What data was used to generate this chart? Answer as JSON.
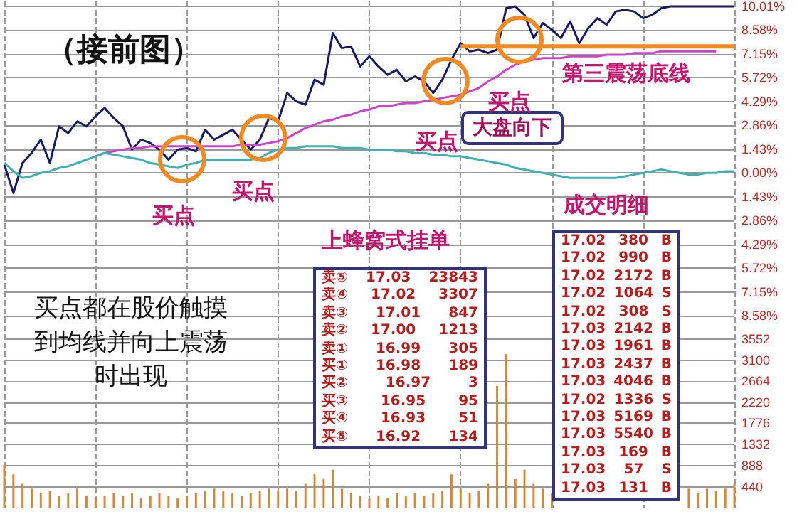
{
  "chart_data": {
    "type": "line",
    "grid": true,
    "marker": "none",
    "categories": [
      null,
      null,
      null,
      null,
      null,
      null,
      null,
      null,
      null,
      null,
      null,
      null,
      null,
      null,
      null,
      null,
      null,
      null,
      null,
      null,
      null,
      null,
      null,
      null,
      null,
      null,
      null,
      null,
      null,
      null,
      null,
      null,
      null,
      null,
      null,
      null,
      null,
      null,
      null,
      null,
      null,
      null,
      null,
      null,
      null,
      null,
      null,
      null,
      null,
      null,
      null,
      null,
      null,
      null,
      null,
      null,
      null,
      null,
      null,
      null,
      null,
      null,
      null,
      null,
      null,
      null,
      null,
      null,
      null,
      null,
      null,
      null,
      null,
      null,
      null,
      null,
      null,
      null,
      null,
      null,
      null
    ],
    "ylim": [
      -20.1,
      10.3
    ],
    "yticks": [
      {
        "value": 10.01,
        "label": "10.01%"
      },
      {
        "value": 8.58,
        "label": "8.58%"
      },
      {
        "value": 7.15,
        "label": "7.15%"
      },
      {
        "value": 5.72,
        "label": "5.72%"
      },
      {
        "value": 4.29,
        "label": "4.29%"
      },
      {
        "value": 2.86,
        "label": "2.86%"
      },
      {
        "value": 1.43,
        "label": "1.43%"
      },
      {
        "value": 0,
        "label": "0.00%"
      },
      {
        "value": -1.43,
        "label": "1.43%"
      },
      {
        "value": -2.86,
        "label": "2.86%"
      },
      {
        "value": -4.29,
        "label": "4.29%"
      },
      {
        "value": -5.72,
        "label": "5.72%"
      },
      {
        "value": -7.15,
        "label": "7.15%"
      },
      {
        "value": -8.58,
        "label": "8.58%"
      }
    ],
    "y2lim": [
      0,
      10650
    ],
    "y2ticks": [
      440,
      888,
      1332,
      1776,
      2220,
      2664,
      3100,
      3552
    ],
    "series": [
      {
        "color": "#1a1a5e",
        "values": [
          0.5,
          -1.2,
          0.6,
          1.2,
          2.0,
          0.6,
          2.8,
          2.4,
          3.1,
          2.8,
          3.4,
          3.9,
          3.3,
          2.8,
          1.4,
          2.0,
          1.8,
          1.4,
          0.8,
          1.4,
          1.5,
          1.3,
          2.6,
          2.0,
          2.3,
          2.6,
          2.0,
          1.4,
          2.0,
          3.3,
          3.1,
          4.8,
          4.3,
          4.1,
          5.6,
          5.3,
          8.4,
          7.5,
          7.6,
          6.4,
          7.0,
          6.4,
          5.9,
          6.2,
          5.5,
          5.8,
          5.5,
          4.8,
          5.6,
          6.8,
          7.8,
          7.3,
          7.4,
          7.2,
          7.4,
          9.9,
          10.0,
          9.5,
          8.1,
          9.0,
          8.6,
          8.1,
          9.1,
          7.8,
          8.7,
          9.3,
          8.9,
          9.7,
          9.8,
          9.7,
          9.3,
          9.5,
          9.9,
          10.0,
          10.0,
          10.0,
          10.0,
          10.0,
          10.0,
          10.0,
          10.0
        ]
      },
      {
        "color": "#cc44cc",
        "values": [
          null,
          null,
          null,
          null,
          null,
          null,
          null,
          null,
          null,
          null,
          1.0,
          1.2,
          1.3,
          1.4,
          1.5,
          1.5,
          1.6,
          1.6,
          1.6,
          1.6,
          1.6,
          1.6,
          1.6,
          1.6,
          1.6,
          1.6,
          1.7,
          1.7,
          1.7,
          1.8,
          1.9,
          2.1,
          2.4,
          2.7,
          2.9,
          3.1,
          3.2,
          3.4,
          3.5,
          3.7,
          3.8,
          4.0,
          4.0,
          4.1,
          4.2,
          4.2,
          4.3,
          4.4,
          4.5,
          4.6,
          4.7,
          4.9,
          5.1,
          5.5,
          5.8,
          6.2,
          6.5,
          6.7,
          6.8,
          6.9,
          6.9,
          6.9,
          7.0,
          7.0,
          7.0,
          7.0,
          7.1,
          7.1,
          7.1,
          7.2,
          7.2,
          7.2,
          7.3,
          7.3,
          7.3,
          7.3,
          7.3,
          7.3,
          7.3,
          null,
          null
        ]
      },
      {
        "color": "#40b0b0",
        "values": [
          0.6,
          0.1,
          -0.3,
          -0.2,
          0.0,
          0.1,
          0.3,
          0.4,
          0.6,
          0.8,
          1.0,
          1.2,
          1.1,
          1.0,
          0.9,
          0.8,
          0.6,
          0.5,
          0.4,
          0.3,
          0.5,
          0.6,
          0.8,
          0.8,
          0.8,
          0.8,
          0.8,
          0.8,
          0.9,
          1.2,
          1.4,
          1.5,
          1.5,
          1.6,
          1.6,
          1.6,
          1.6,
          1.5,
          1.5,
          1.5,
          1.4,
          1.4,
          1.4,
          1.3,
          1.3,
          1.2,
          1.2,
          1.1,
          1.1,
          1.0,
          1.0,
          0.9,
          0.8,
          0.7,
          0.6,
          0.5,
          0.3,
          0.2,
          0.1,
          0.0,
          -0.1,
          -0.2,
          -0.3,
          -0.3,
          -0.3,
          -0.3,
          -0.3,
          -0.3,
          -0.2,
          -0.1,
          0.0,
          0.1,
          0.2,
          0.1,
          0.0,
          -0.1,
          -0.1,
          0.0,
          0.0,
          0.1,
          0.1
        ]
      },
      {
        "color": "#f08a24",
        "values": [
          null,
          null,
          null,
          null,
          null,
          null,
          null,
          null,
          null,
          null,
          null,
          null,
          null,
          null,
          null,
          null,
          null,
          null,
          null,
          null,
          null,
          null,
          null,
          null,
          null,
          null,
          null,
          null,
          null,
          null,
          null,
          null,
          null,
          null,
          null,
          null,
          null,
          null,
          null,
          null,
          null,
          null,
          null,
          null,
          null,
          null,
          null,
          null,
          null,
          null,
          7.6,
          7.6,
          7.6,
          7.6,
          7.6,
          7.6,
          7.6,
          7.6,
          7.6,
          7.6,
          7.6,
          7.6,
          7.6,
          7.6,
          7.6,
          7.6,
          7.6,
          7.6,
          7.6,
          7.6,
          7.6,
          7.6,
          7.6,
          7.6,
          7.6,
          7.6,
          7.6,
          7.6,
          7.6,
          7.6,
          7.6
        ]
      },
      {
        "type": "bar",
        "axis": "y2",
        "color": "#d08a40",
        "values": [
          900,
          700,
          500,
          400,
          300,
          350,
          250,
          300,
          400,
          250,
          200,
          250,
          300,
          250,
          300,
          200,
          250,
          300,
          250,
          200,
          250,
          300,
          350,
          400,
          350,
          300,
          250,
          300,
          350,
          400,
          350,
          400,
          350,
          500,
          700,
          600,
          800,
          400,
          300,
          250,
          200,
          250,
          200,
          300,
          250,
          300,
          250,
          300,
          350,
          700,
          400,
          300,
          350,
          500,
          2560,
          3230,
          600,
          800,
          500,
          400,
          300,
          null,
          null,
          null,
          null,
          null,
          null,
          null,
          null,
          null,
          null,
          null,
          null,
          null,
          null,
          400,
          300,
          400,
          350,
          400,
          500
        ]
      }
    ],
    "annotations": [
      "（接前图）",
      "大盘向下",
      "上蜂窝式挂单",
      "成交明细",
      "买点都在股价触摸到均线并向上震荡时出现",
      "卖⑤ 17.03 23843",
      "卖④ 17.02 3307",
      "卖③ 17.01 847",
      "卖② 17.00 1213",
      "卖① 16.99 305",
      "买① 16.98 189",
      "买② 16.97 3",
      "买③ 16.95 95",
      "买④ 16.93 51",
      "买⑤ 16.92 134",
      "17.02 380 B",
      "17.02 990 B",
      "17.02 2172 B",
      "17.02 1064 S",
      "17.02 308 S",
      "17.03 2142 B",
      "17.03 1961 B",
      "17.03 2437 B",
      "17.03 4046 B",
      "17.02 1336 S",
      "17.03 5169 B",
      "17.03 5540 B",
      "17.03 169 B",
      "17.03 57 S",
      "17.03 131 B",
      "买点",
      "买点",
      "买点",
      "买点",
      "第三震荡底线"
    ]
  }
}
